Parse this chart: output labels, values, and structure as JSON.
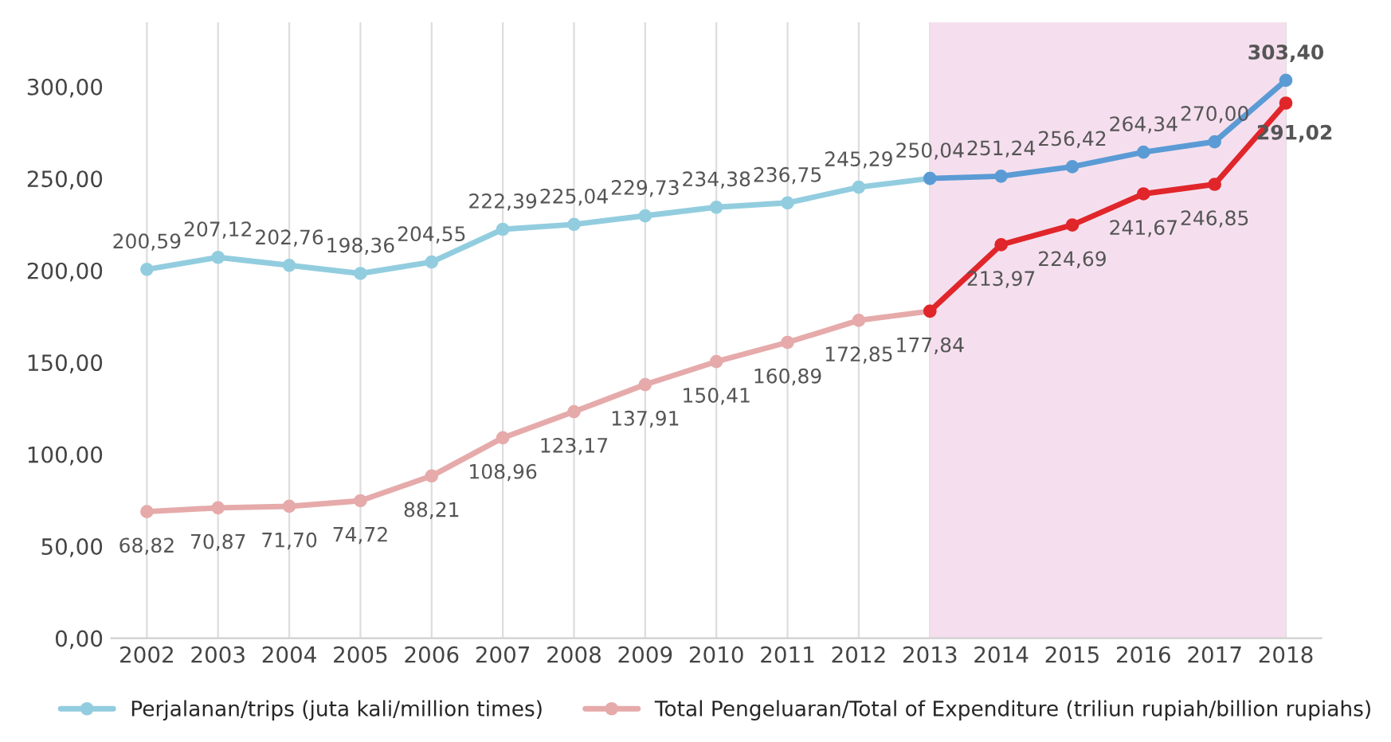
{
  "chart_data": {
    "type": "line",
    "categories": [
      "2002",
      "2003",
      "2004",
      "2005",
      "2006",
      "2007",
      "2008",
      "2009",
      "2010",
      "2011",
      "2012",
      "2013",
      "2014",
      "2015",
      "2016",
      "2017",
      "2018"
    ],
    "series": [
      {
        "name": "Perjalanan/trips (juta kali/million times)",
        "color": "#92cddf",
        "values": [
          200.59,
          207.12,
          202.76,
          198.36,
          204.55,
          222.39,
          225.04,
          229.73,
          234.38,
          236.75,
          245.29,
          250.04,
          null,
          null,
          null,
          null,
          null
        ],
        "value_labels": [
          "200,59",
          "207,12",
          "202,76",
          "198,36",
          "204,55",
          "222,39",
          "225,04",
          "229,73",
          "234,38",
          "236,75",
          "245,29",
          "250,04",
          null,
          null,
          null,
          null,
          null
        ]
      },
      {
        "name": "Total Pengeluaran/Total of Expenditure (triliun rupiah/billion rupiahs)",
        "color": "#e6aaaa",
        "values": [
          68.82,
          70.87,
          71.7,
          74.72,
          88.21,
          108.96,
          123.17,
          137.91,
          150.41,
          160.89,
          172.85,
          177.84,
          null,
          null,
          null,
          null,
          null
        ],
        "value_labels": [
          "68,82",
          "70,87",
          "71,70",
          "74,72",
          "88,21",
          "108,96",
          "123,17",
          "137,91",
          "150,41",
          "160,89",
          "172,85",
          "177,84",
          null,
          null,
          null,
          null,
          null
        ]
      },
      {
        "color": "#5b9bd5",
        "values": [
          null,
          null,
          null,
          null,
          null,
          null,
          null,
          null,
          null,
          null,
          null,
          250.04,
          251.24,
          256.42,
          264.34,
          270.0,
          303.4
        ],
        "value_labels": [
          null,
          null,
          null,
          null,
          null,
          null,
          null,
          null,
          null,
          null,
          null,
          null,
          "251,24",
          "256,42",
          "264,34",
          "270,00",
          "303,40"
        ]
      },
      {
        "color": "#e0262a",
        "values": [
          null,
          null,
          null,
          null,
          null,
          null,
          null,
          null,
          null,
          null,
          null,
          177.84,
          213.97,
          224.69,
          241.67,
          246.85,
          291.02
        ],
        "value_labels": [
          null,
          null,
          null,
          null,
          null,
          null,
          null,
          null,
          null,
          null,
          null,
          null,
          "213,97",
          "224,69",
          "241,67",
          "246,85",
          "291,02"
        ]
      }
    ],
    "ylim": [
      0,
      335
    ],
    "yticks": [
      {
        "value": 0,
        "label": "0,00"
      },
      {
        "value": 50,
        "label": "50,00"
      },
      {
        "value": 100,
        "label": "100,00"
      },
      {
        "value": 150,
        "label": "150,00"
      },
      {
        "value": 200,
        "label": "200,00"
      },
      {
        "value": 250,
        "label": "250,00"
      },
      {
        "value": 300,
        "label": "300,00"
      }
    ],
    "bands": [
      {
        "axis": "x",
        "from": "2013",
        "to": "2018",
        "color": "#f5dfee"
      }
    ],
    "grid": "x",
    "legend": "bottom",
    "marker": "circle",
    "line_style": "solid"
  }
}
